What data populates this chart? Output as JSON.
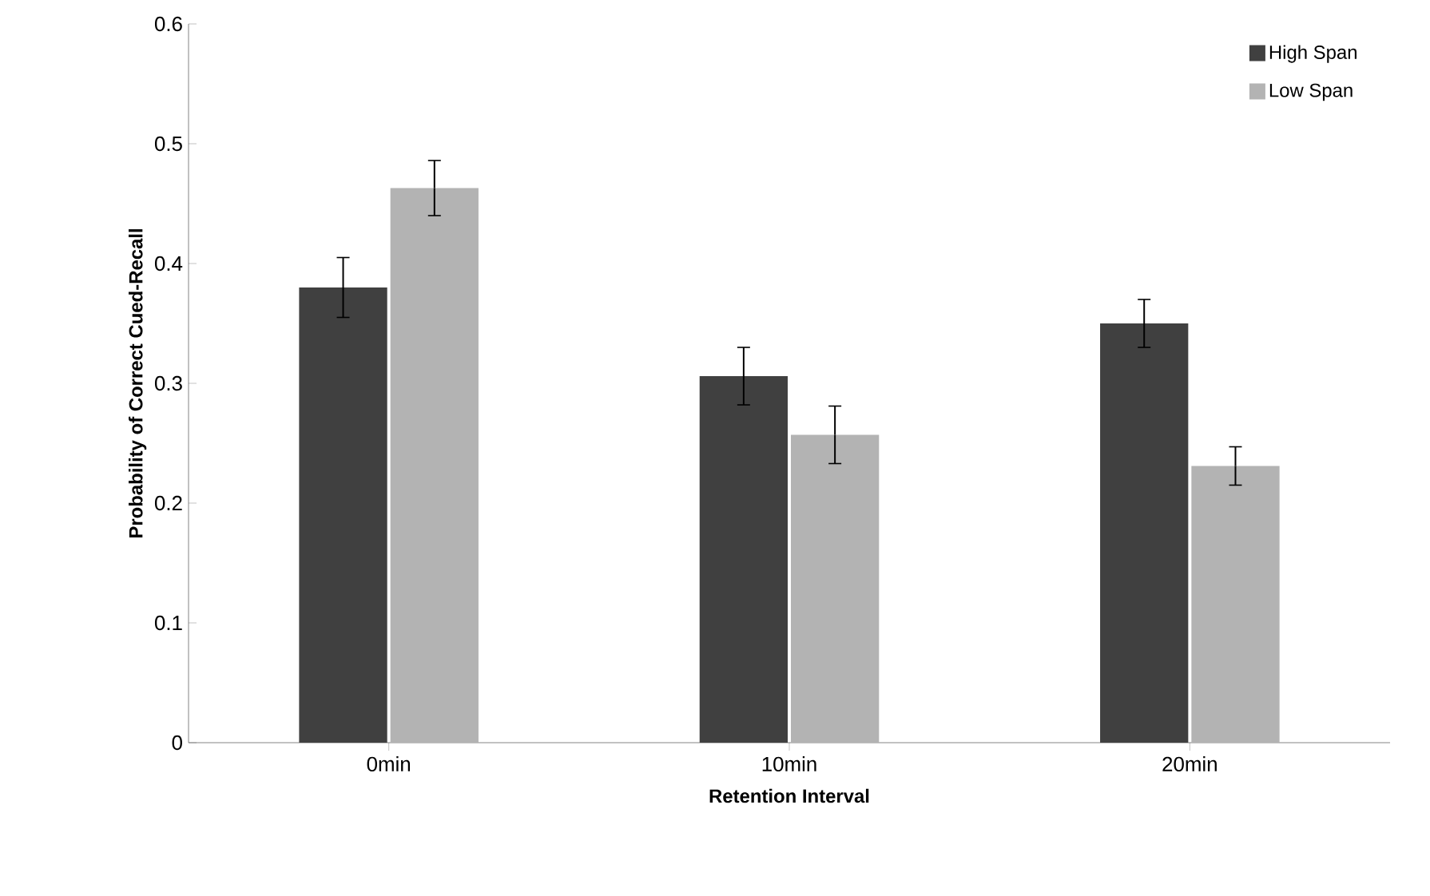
{
  "chart_data": {
    "type": "bar",
    "xlabel": "Retention Interval",
    "ylabel": "Probability of Correct Cued-Recall",
    "categories": [
      "0min",
      "10min",
      "20min"
    ],
    "series": [
      {
        "name": "High Span",
        "color": "#404040",
        "values": [
          0.38,
          0.306,
          0.35
        ],
        "errors": [
          0.025,
          0.024,
          0.02
        ]
      },
      {
        "name": "Low Span",
        "color": "#b3b3b3",
        "values": [
          0.463,
          0.257,
          0.231
        ],
        "errors": [
          0.023,
          0.024,
          0.016
        ]
      }
    ],
    "ylim": [
      0,
      0.6
    ],
    "yticks": [
      0,
      0.1,
      0.2,
      0.3,
      0.4,
      0.5,
      0.6
    ],
    "legend": "top right"
  }
}
